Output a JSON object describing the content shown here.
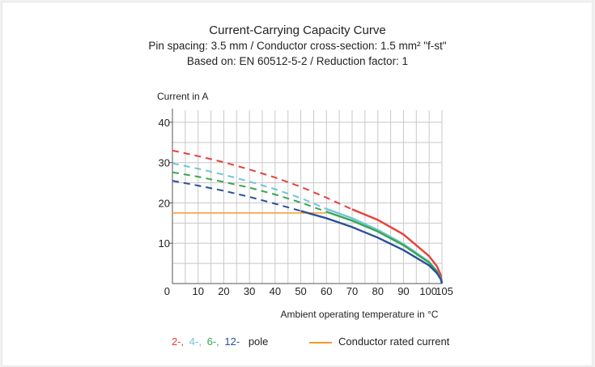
{
  "chart_data": {
    "type": "line",
    "title": "Current-Carrying Capacity Curve",
    "subtitle_1": "Pin spacing: 3.5 mm / Conductor cross-section: 1.5 mm² \"f-st\"",
    "subtitle_2": "Based on: EN 60512-5-2 / Reduction factor: 1",
    "ylabel": "Current in A",
    "xlabel": "Ambient operating temperature in °C",
    "xlim": [
      0,
      105
    ],
    "ylim": [
      0,
      43
    ],
    "x_ticks": [
      0,
      10,
      20,
      30,
      40,
      50,
      60,
      70,
      80,
      90,
      100,
      105
    ],
    "x_tick_labels": [
      "0",
      "10",
      "20",
      "30",
      "40",
      "50",
      "60",
      "70",
      "80",
      "90",
      "100",
      "105"
    ],
    "y_ticks": [
      10,
      20,
      30,
      40
    ],
    "y_tick_labels": [
      "10",
      "20",
      "30",
      "40"
    ],
    "grid": true,
    "series": [
      {
        "key": "2",
        "color": "#e8403a",
        "dashed": [
          [
            0,
            33
          ],
          [
            10,
            31.6
          ],
          [
            20,
            30.1
          ],
          [
            30,
            28.3
          ],
          [
            40,
            26.3
          ],
          [
            50,
            24
          ],
          [
            60,
            21.3
          ],
          [
            70,
            18.4
          ]
        ],
        "solid": [
          [
            70,
            18.4
          ],
          [
            80,
            15.8
          ],
          [
            90,
            12.2
          ],
          [
            100,
            6.8
          ],
          [
            103,
            4.3
          ],
          [
            104.5,
            2.2
          ],
          [
            105,
            0
          ]
        ]
      },
      {
        "key": "4",
        "color": "#6ec6d6",
        "dashed": [
          [
            0,
            29.8
          ],
          [
            10,
            28.5
          ],
          [
            20,
            27
          ],
          [
            30,
            25.3
          ],
          [
            40,
            23.4
          ],
          [
            50,
            21.2
          ],
          [
            60,
            18.5
          ]
        ],
        "solid": [
          [
            60,
            18.5
          ],
          [
            70,
            16.2
          ],
          [
            80,
            13.3
          ],
          [
            90,
            9.8
          ],
          [
            100,
            5.4
          ],
          [
            103,
            3.1
          ],
          [
            104.5,
            1.4
          ],
          [
            105,
            0
          ]
        ]
      },
      {
        "key": "6",
        "color": "#3aa552",
        "dashed": [
          [
            0,
            27.6
          ],
          [
            10,
            26.5
          ],
          [
            20,
            25.2
          ],
          [
            30,
            23.8
          ],
          [
            40,
            22.1
          ],
          [
            50,
            20.1
          ],
          [
            60,
            17.8
          ]
        ],
        "solid": [
          [
            60,
            17.8
          ],
          [
            70,
            15.6
          ],
          [
            80,
            12.9
          ],
          [
            90,
            9.5
          ],
          [
            100,
            5.2
          ],
          [
            103,
            3
          ],
          [
            104.5,
            1.3
          ],
          [
            105,
            0
          ]
        ]
      },
      {
        "key": "12",
        "color": "#2a4f9a",
        "dashed": [
          [
            0,
            25.5
          ],
          [
            10,
            24.3
          ],
          [
            20,
            23
          ],
          [
            30,
            21.5
          ],
          [
            40,
            19.8
          ],
          [
            50,
            18
          ]
        ],
        "solid": [
          [
            50,
            18
          ],
          [
            60,
            16.2
          ],
          [
            70,
            14
          ],
          [
            80,
            11.4
          ],
          [
            90,
            8.3
          ],
          [
            100,
            4.5
          ],
          [
            103,
            2.6
          ],
          [
            104.5,
            1.1
          ],
          [
            105,
            0
          ]
        ]
      }
    ],
    "rated_current": {
      "value": 17.5,
      "x_end": 60,
      "color": "#f59a2e"
    },
    "legend": {
      "pole_keys": [
        "2-,",
        "4-,",
        "6-,",
        "12-"
      ],
      "pole_label": "pole",
      "rated_label": "Conductor rated current"
    }
  }
}
